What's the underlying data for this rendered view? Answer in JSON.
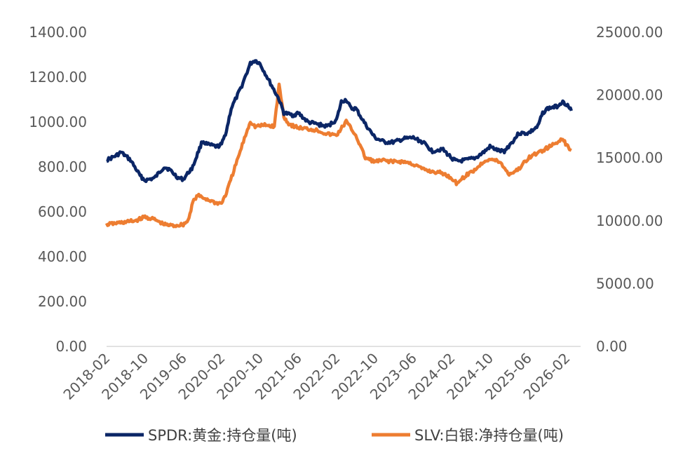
{
  "chart_data": {
    "type": "line",
    "title": "",
    "x_ticks": [
      "2018-02",
      "2018-10",
      "2019-06",
      "2020-02",
      "2020-10",
      "2021-06",
      "2022-02",
      "2022-10",
      "2023-06",
      "2024-02",
      "2024-10",
      "2025-06",
      "2026-02"
    ],
    "y_left": {
      "ticks": [
        "0.00",
        "200.00",
        "400.00",
        "600.00",
        "800.00",
        "1000.00",
        "1200.00",
        "1400.00"
      ],
      "range": [
        0,
        1400
      ]
    },
    "y_right": {
      "ticks": [
        "0.00",
        "5000.00",
        "10000.00",
        "15000.00",
        "20000.00",
        "25000.00"
      ],
      "range": [
        0,
        25000
      ]
    },
    "grid": false,
    "legend_position": "bottom",
    "series": [
      {
        "name": "SPDR:黄金:持仓量(吨)",
        "axis": "left",
        "color": "#0b2666",
        "points": [
          [
            "2018-02",
            830
          ],
          [
            "2018-04",
            850
          ],
          [
            "2018-05",
            865
          ],
          [
            "2018-07",
            830
          ],
          [
            "2018-09",
            760
          ],
          [
            "2018-10",
            740
          ],
          [
            "2018-12",
            750
          ],
          [
            "2019-02",
            800
          ],
          [
            "2019-03",
            790
          ],
          [
            "2019-05",
            750
          ],
          [
            "2019-06",
            745
          ],
          [
            "2019-08",
            800
          ],
          [
            "2019-09",
            860
          ],
          [
            "2019-10",
            915
          ],
          [
            "2019-11",
            900
          ],
          [
            "2020-01",
            890
          ],
          [
            "2020-02",
            900
          ],
          [
            "2020-03",
            960
          ],
          [
            "2020-04",
            1060
          ],
          [
            "2020-06",
            1150
          ],
          [
            "2020-08",
            1260
          ],
          [
            "2020-09",
            1275
          ],
          [
            "2020-10",
            1260
          ],
          [
            "2020-12",
            1180
          ],
          [
            "2021-02",
            1100
          ],
          [
            "2021-03",
            1040
          ],
          [
            "2021-05",
            1030
          ],
          [
            "2021-06",
            1040
          ],
          [
            "2021-08",
            1000
          ],
          [
            "2021-10",
            990
          ],
          [
            "2021-12",
            980
          ],
          [
            "2022-02",
            1010
          ],
          [
            "2022-03",
            1090
          ],
          [
            "2022-04",
            1100
          ],
          [
            "2022-05",
            1060
          ],
          [
            "2022-06",
            1060
          ],
          [
            "2022-08",
            990
          ],
          [
            "2022-10",
            930
          ],
          [
            "2022-12",
            910
          ],
          [
            "2023-02",
            910
          ],
          [
            "2023-04",
            925
          ],
          [
            "2023-06",
            930
          ],
          [
            "2023-08",
            910
          ],
          [
            "2023-10",
            870
          ],
          [
            "2023-12",
            880
          ],
          [
            "2024-02",
            840
          ],
          [
            "2024-03",
            825
          ],
          [
            "2024-05",
            830
          ],
          [
            "2024-07",
            840
          ],
          [
            "2024-09",
            870
          ],
          [
            "2024-10",
            890
          ],
          [
            "2024-12",
            870
          ],
          [
            "2025-01",
            870
          ],
          [
            "2025-03",
            920
          ],
          [
            "2025-04",
            950
          ],
          [
            "2025-06",
            950
          ],
          [
            "2025-08",
            980
          ],
          [
            "2025-09",
            1040
          ],
          [
            "2025-10",
            1060
          ],
          [
            "2025-12",
            1070
          ],
          [
            "2026-01",
            1090
          ],
          [
            "2026-02",
            1080
          ],
          [
            "2026-03",
            1050
          ]
        ]
      },
      {
        "name": "SLV:白银:净持仓量(吨)",
        "axis": "right",
        "color": "#ed7d31",
        "points": [
          [
            "2018-02",
            9700
          ],
          [
            "2018-04",
            9800
          ],
          [
            "2018-06",
            9900
          ],
          [
            "2018-08",
            10000
          ],
          [
            "2018-10",
            10300
          ],
          [
            "2018-12",
            10100
          ],
          [
            "2019-02",
            9700
          ],
          [
            "2019-04",
            9600
          ],
          [
            "2019-06",
            9700
          ],
          [
            "2019-07",
            10000
          ],
          [
            "2019-08",
            11500
          ],
          [
            "2019-09",
            12000
          ],
          [
            "2019-11",
            11700
          ],
          [
            "2020-01",
            11400
          ],
          [
            "2020-02",
            11400
          ],
          [
            "2020-03",
            12200
          ],
          [
            "2020-05",
            14500
          ],
          [
            "2020-07",
            16800
          ],
          [
            "2020-08",
            17900
          ],
          [
            "2020-09",
            17500
          ],
          [
            "2020-11",
            17600
          ],
          [
            "2021-01",
            17500
          ],
          [
            "2021-02",
            20800
          ],
          [
            "2021-03",
            18300
          ],
          [
            "2021-04",
            17700
          ],
          [
            "2021-06",
            17400
          ],
          [
            "2021-08",
            17300
          ],
          [
            "2021-10",
            17200
          ],
          [
            "2021-12",
            16900
          ],
          [
            "2022-02",
            16800
          ],
          [
            "2022-04",
            17900
          ],
          [
            "2022-06",
            16800
          ],
          [
            "2022-08",
            15000
          ],
          [
            "2022-10",
            14700
          ],
          [
            "2022-12",
            14800
          ],
          [
            "2023-02",
            14700
          ],
          [
            "2023-04",
            14700
          ],
          [
            "2023-06",
            14500
          ],
          [
            "2023-08",
            14100
          ],
          [
            "2023-10",
            13900
          ],
          [
            "2023-12",
            13800
          ],
          [
            "2024-02",
            13400
          ],
          [
            "2024-03",
            13000
          ],
          [
            "2024-05",
            13600
          ],
          [
            "2024-07",
            14100
          ],
          [
            "2024-09",
            14800
          ],
          [
            "2024-10",
            14900
          ],
          [
            "2024-12",
            14700
          ],
          [
            "2025-02",
            13700
          ],
          [
            "2025-04",
            14100
          ],
          [
            "2025-06",
            15000
          ],
          [
            "2025-08",
            15400
          ],
          [
            "2025-10",
            15800
          ],
          [
            "2025-12",
            16200
          ],
          [
            "2026-01",
            16600
          ],
          [
            "2026-02",
            16000
          ],
          [
            "2026-03",
            15600
          ]
        ]
      }
    ]
  },
  "colors": {
    "axis_line": "#d9d9d9",
    "tick_text": "#595959",
    "legend_text": "#404040"
  }
}
